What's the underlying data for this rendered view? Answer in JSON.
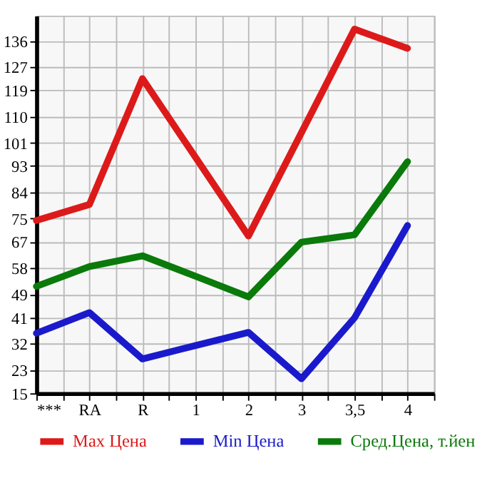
{
  "chart_data": {
    "type": "line",
    "categories": [
      "***",
      "RA",
      "R",
      "1",
      "2",
      "3",
      "3,5",
      "4"
    ],
    "series": [
      {
        "name": "Max Цена",
        "color": "#dd1a1a",
        "values": [
          74.3,
          79.8,
          123.0,
          96.0,
          69.0,
          104.5,
          140.0,
          133.4
        ]
      },
      {
        "name": "Min Цена",
        "color": "#1a1acc",
        "values": [
          35.6,
          42.7,
          26.8,
          31.4,
          35.9,
          20.0,
          40.9,
          72.6
        ]
      },
      {
        "name": "Сред.Цена, т.йен",
        "color": "#0a7a0a",
        "values": [
          51.7,
          58.5,
          62.2,
          55.2,
          48.1,
          66.9,
          69.4,
          94.5
        ]
      }
    ],
    "ylim": [
      15,
      144.6
    ],
    "yticks": [
      15,
      23,
      32,
      41,
      49,
      58,
      67,
      75,
      84,
      93,
      101,
      110,
      119,
      127,
      136
    ],
    "grid": true,
    "legend": "bottom",
    "marker": "none",
    "line_style": "solid"
  }
}
